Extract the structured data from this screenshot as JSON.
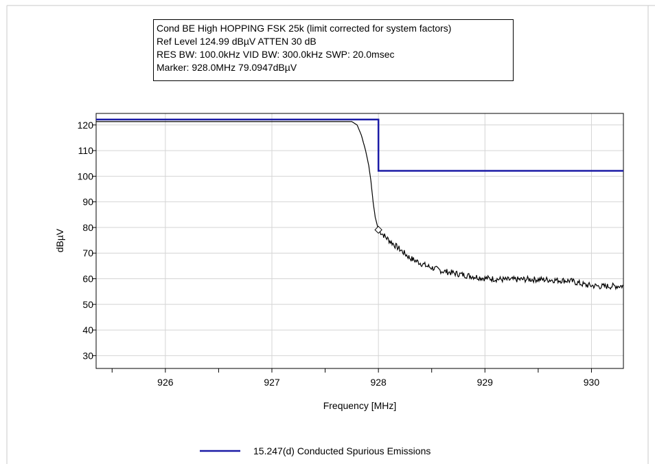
{
  "info": {
    "line1": "Cond BE High HOPPING FSK 25k (limit corrected for system factors)",
    "line2": "Ref Level 124.99 dBµV    ATTEN 30 dB",
    "line3": "RES BW: 100.0kHz  VID BW: 300.0kHz  SWP: 20.0msec",
    "line4": "Marker: 928.0MHz  79.0947dBµV"
  },
  "colors": {
    "limit": "#1a1aa6",
    "trace": "#000000",
    "grid": "#d4d4d4",
    "frame": "#c8c8c8"
  },
  "chart_data": {
    "type": "line",
    "xlabel": "Frequency [MHz]",
    "ylabel": "dBµV",
    "xlim": [
      925.35,
      930.3
    ],
    "ylim": [
      25,
      124.5
    ],
    "x_ticks": [
      926,
      927,
      928,
      929,
      930
    ],
    "y_ticks": [
      30,
      40,
      50,
      60,
      70,
      80,
      90,
      100,
      110,
      120
    ],
    "grid": true,
    "legend_position": "bottom-center",
    "series": [
      {
        "name": "15.247(d) Conducted Spurious Emissions",
        "style": "limit",
        "x": [
          925.35,
          928.0,
          928.0,
          930.3
        ],
        "y": [
          122.1,
          122.1,
          102.1,
          102.1
        ]
      },
      {
        "style": "trace",
        "x": [
          925.35,
          925.6,
          926.0,
          926.5,
          927.0,
          927.5,
          927.75,
          927.8,
          927.84,
          927.88,
          927.91,
          927.93,
          927.95,
          927.97,
          928.0,
          928.05,
          928.1,
          928.2,
          928.3,
          928.45,
          928.6,
          928.8,
          929.0,
          929.2,
          929.4,
          929.6,
          929.8,
          929.95,
          930.1,
          930.3
        ],
        "y": [
          121.3,
          121.3,
          121.3,
          121.3,
          121.3,
          121.3,
          121.3,
          120.0,
          116.0,
          110.0,
          104.0,
          98.0,
          90.0,
          84.0,
          79.09,
          77.0,
          75.0,
          71.5,
          68.0,
          65.0,
          63.0,
          61.5,
          60.2,
          59.6,
          59.8,
          59.6,
          59.2,
          57.5,
          57.0,
          57.2
        ]
      }
    ],
    "marker": {
      "x": 928.0,
      "y": 79.09
    }
  }
}
